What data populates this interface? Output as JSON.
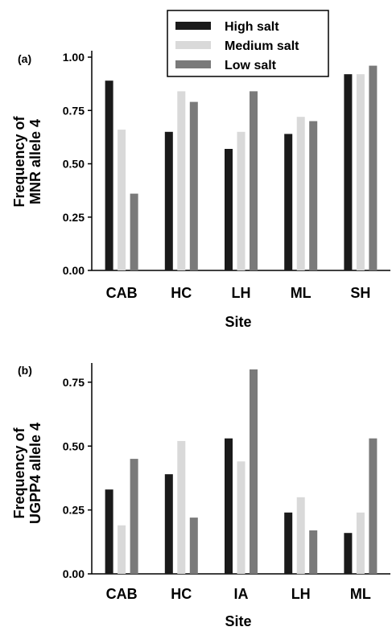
{
  "legend": {
    "items": [
      {
        "label": "High salt",
        "color": "#1a1a1a"
      },
      {
        "label": "Medium salt",
        "color": "#d9d9d9"
      },
      {
        "label": "Low salt",
        "color": "#7a7a7a"
      }
    ]
  },
  "chart_data": [
    {
      "type": "bar",
      "panel_label": "(a)",
      "xlabel": "Site",
      "ylabel": [
        "Frequency of",
        "MNR allele 4"
      ],
      "ylim": [
        0,
        1.0
      ],
      "yticks": [
        "0.00",
        "0.25",
        "0.50",
        "0.75",
        "1.00"
      ],
      "categories": [
        "CAB",
        "HC",
        "LH",
        "ML",
        "SH"
      ],
      "series": [
        {
          "name": "High salt",
          "values": [
            0.89,
            0.65,
            0.57,
            0.64,
            0.92
          ]
        },
        {
          "name": "Medium salt",
          "values": [
            0.66,
            0.84,
            0.65,
            0.72,
            0.92
          ]
        },
        {
          "name": "Low salt",
          "values": [
            0.36,
            0.79,
            0.84,
            0.7,
            0.96
          ]
        }
      ]
    },
    {
      "type": "bar",
      "panel_label": "(b)",
      "xlabel": "Site",
      "ylabel": [
        "Frequency of",
        "UGPP4 allele 4"
      ],
      "ylim": [
        0,
        0.8
      ],
      "yticks": [
        "0.00",
        "0.25",
        "0.50",
        "0.75"
      ],
      "categories": [
        "CAB",
        "HC",
        "IA",
        "LH",
        "ML"
      ],
      "series": [
        {
          "name": "High salt",
          "values": [
            0.33,
            0.39,
            0.53,
            0.24,
            0.16
          ]
        },
        {
          "name": "Medium salt",
          "values": [
            0.19,
            0.52,
            0.44,
            0.3,
            0.24
          ]
        },
        {
          "name": "Low salt",
          "values": [
            0.45,
            0.22,
            0.8,
            0.17,
            0.53
          ]
        }
      ]
    }
  ]
}
